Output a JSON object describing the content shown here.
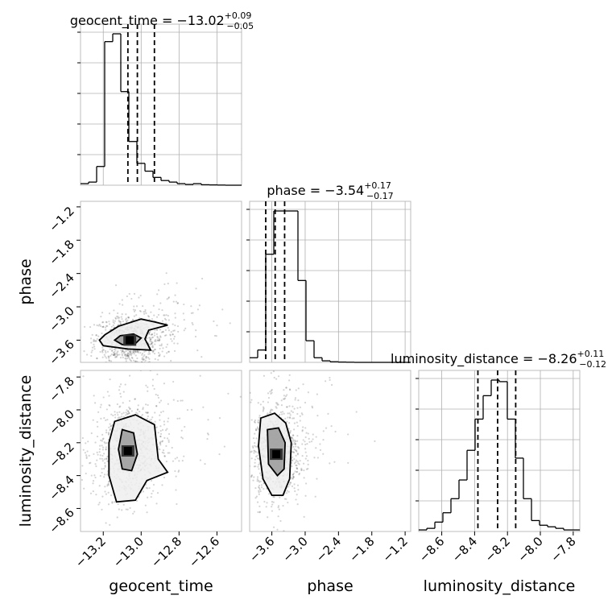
{
  "chart_data": {
    "type": "corner",
    "parameters": [
      {
        "name": "geocent_time",
        "median": -13.02,
        "err_plus": 0.09,
        "err_minus": 0.05,
        "title_main": "geocent_time = −13.02",
        "title_sup": "+0.09",
        "title_sub": "−0.05",
        "range": [
          -13.32,
          -12.47
        ],
        "ticks": [
          -13.2,
          -13.0,
          -12.8,
          -12.6
        ],
        "tick_labels": [
          "−13.2",
          "−13.0",
          "−12.8",
          "−12.6"
        ],
        "quantiles": [
          -13.07,
          -13.02,
          -12.93
        ],
        "hist": {
          "edges_start": -13.32,
          "bin_width": 0.0425,
          "counts": [
            0.01,
            0.02,
            0.12,
            0.92,
            0.97,
            0.6,
            0.28,
            0.14,
            0.09,
            0.05,
            0.03,
            0.02,
            0.01,
            0.005,
            0.01,
            0.003,
            0.002,
            0.001,
            0.0,
            0.0
          ]
        }
      },
      {
        "name": "phase",
        "median": -3.54,
        "err_plus": 0.17,
        "err_minus": 0.17,
        "title_main": "phase = −3.54",
        "title_sup": "+0.17",
        "title_sub": "−0.17",
        "range": [
          -4.0,
          -1.1
        ],
        "ticks": [
          -3.6,
          -3.0,
          -2.4,
          -1.8,
          -1.2
        ],
        "tick_labels": [
          "−3.6",
          "−3.0",
          "−2.4",
          "−1.8",
          "−1.2"
        ],
        "quantiles": [
          -3.71,
          -3.54,
          -3.37
        ],
        "hist": {
          "edges_start": -4.0,
          "bin_width": 0.145,
          "counts": [
            0.03,
            0.08,
            0.7,
            0.98,
            0.98,
            0.98,
            0.53,
            0.14,
            0.03,
            0.01,
            0.004,
            0.002,
            0.001,
            0.0,
            0.0,
            0.0,
            0.0,
            0.0,
            0.0,
            0.0
          ]
        }
      },
      {
        "name": "luminosity_distance",
        "median": -8.26,
        "err_plus": 0.11,
        "err_minus": 0.12,
        "title_main": "luminosity_distance = −8.26",
        "title_sup": "+0.11",
        "title_sub": "−0.12",
        "range": [
          -8.74,
          -7.76
        ],
        "ticks": [
          -8.6,
          -8.4,
          -8.2,
          -8.0,
          -7.8
        ],
        "tick_labels": [
          "−8.6",
          "−8.4",
          "−8.2",
          "−8.0",
          "−7.8"
        ],
        "quantiles": [
          -8.38,
          -8.26,
          -8.15
        ],
        "hist": {
          "edges_start": -8.74,
          "bin_width": 0.049,
          "counts": [
            0.01,
            0.02,
            0.06,
            0.12,
            0.21,
            0.33,
            0.52,
            0.72,
            0.87,
            0.97,
            0.96,
            0.72,
            0.47,
            0.21,
            0.07,
            0.04,
            0.03,
            0.02,
            0.01,
            0.01
          ]
        }
      }
    ],
    "pairs": [
      {
        "x": "geocent_time",
        "y": "phase",
        "peak": [
          -13.06,
          -3.6
        ],
        "contour_inner": [
          [
            -13.11,
            -3.52
          ],
          [
            -13.04,
            -3.49
          ],
          [
            -13.0,
            -3.56
          ],
          [
            -13.03,
            -3.66
          ],
          [
            -13.1,
            -3.68
          ],
          [
            -13.14,
            -3.6
          ]
        ],
        "contour_outer": [
          [
            -13.19,
            -3.5
          ],
          [
            -13.12,
            -3.35
          ],
          [
            -13.0,
            -3.22
          ],
          [
            -12.93,
            -3.27
          ],
          [
            -12.86,
            -3.33
          ],
          [
            -12.96,
            -3.42
          ],
          [
            -12.98,
            -3.58
          ],
          [
            -12.95,
            -3.78
          ],
          [
            -13.07,
            -3.76
          ],
          [
            -13.2,
            -3.7
          ],
          [
            -13.22,
            -3.6
          ]
        ]
      },
      {
        "x": "geocent_time",
        "y": "luminosity_distance",
        "peak": [
          -13.07,
          -8.25
        ],
        "contour_inner": [
          [
            -13.1,
            -8.12
          ],
          [
            -13.04,
            -8.14
          ],
          [
            -13.02,
            -8.27
          ],
          [
            -13.05,
            -8.37
          ],
          [
            -13.1,
            -8.36
          ],
          [
            -13.12,
            -8.24
          ]
        ],
        "contour_outer": [
          [
            -13.14,
            -8.07
          ],
          [
            -13.03,
            -8.03
          ],
          [
            -12.93,
            -8.09
          ],
          [
            -12.91,
            -8.3
          ],
          [
            -12.86,
            -8.38
          ],
          [
            -12.97,
            -8.43
          ],
          [
            -13.03,
            -8.55
          ],
          [
            -13.13,
            -8.56
          ],
          [
            -13.17,
            -8.4
          ],
          [
            -13.17,
            -8.2
          ]
        ]
      },
      {
        "x": "phase",
        "y": "luminosity_distance",
        "peak": [
          -3.52,
          -8.27
        ],
        "contour_inner": [
          [
            -3.68,
            -8.12
          ],
          [
            -3.48,
            -8.11
          ],
          [
            -3.36,
            -8.2
          ],
          [
            -3.38,
            -8.36
          ],
          [
            -3.5,
            -8.4
          ],
          [
            -3.66,
            -8.33
          ]
        ],
        "contour_outer": [
          [
            -3.8,
            -8.05
          ],
          [
            -3.55,
            -8.02
          ],
          [
            -3.35,
            -8.08
          ],
          [
            -3.25,
            -8.2
          ],
          [
            -3.28,
            -8.42
          ],
          [
            -3.4,
            -8.52
          ],
          [
            -3.6,
            -8.52
          ],
          [
            -3.76,
            -8.42
          ],
          [
            -3.84,
            -8.22
          ]
        ]
      }
    ],
    "grid": true
  }
}
